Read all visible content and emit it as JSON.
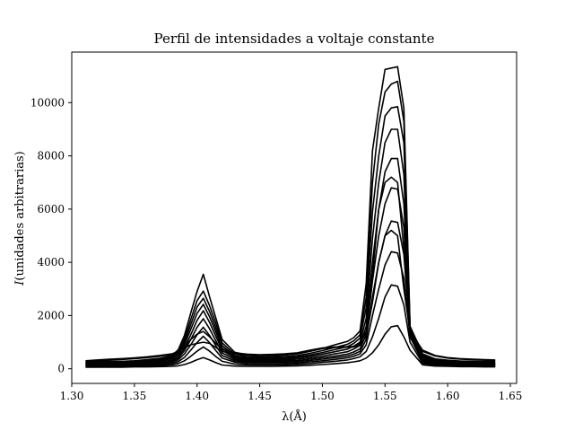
{
  "chart_data": {
    "type": "line",
    "title": "Perfil de intensidades a voltaje constante",
    "xlabel": "λ(Å)",
    "ylabel_symbol": "I",
    "ylabel_rest": "(unidades arbitrarias)",
    "xlim": [
      1.3,
      1.655
    ],
    "ylim": [
      -550,
      11900
    ],
    "xticks": [
      1.3,
      1.35,
      1.4,
      1.45,
      1.5,
      1.55,
      1.6,
      1.65
    ],
    "xtick_labels": [
      "1.30",
      "1.35",
      "1.40",
      "1.45",
      "1.50",
      "1.55",
      "1.60",
      "1.65"
    ],
    "yticks": [
      0,
      2000,
      4000,
      6000,
      8000,
      10000
    ],
    "ytick_labels": [
      "0",
      "2000",
      "4000",
      "6000",
      "8000",
      "10000"
    ],
    "grid": false,
    "line_color": "#000000",
    "x": [
      1.311,
      1.32,
      1.33,
      1.34,
      1.35,
      1.36,
      1.37,
      1.38,
      1.385,
      1.39,
      1.395,
      1.4,
      1.405,
      1.41,
      1.415,
      1.42,
      1.43,
      1.44,
      1.45,
      1.46,
      1.47,
      1.48,
      1.49,
      1.5,
      1.51,
      1.52,
      1.525,
      1.53,
      1.535,
      1.54,
      1.545,
      1.55,
      1.555,
      1.56,
      1.565,
      1.57,
      1.58,
      1.59,
      1.6,
      1.61,
      1.62,
      1.63,
      1.638
    ],
    "series": [
      {
        "values": [
          60,
          60,
          60,
          60,
          70,
          70,
          80,
          90,
          110,
          160,
          240,
          340,
          420,
          330,
          230,
          140,
          100,
          90,
          90,
          90,
          100,
          110,
          130,
          160,
          190,
          230,
          260,
          300,
          400,
          600,
          900,
          1300,
          1580,
          1620,
          1200,
          700,
          150,
          100,
          90,
          80,
          80,
          70,
          70
        ]
      },
      {
        "values": [
          80,
          80,
          90,
          90,
          100,
          110,
          120,
          150,
          200,
          300,
          470,
          660,
          820,
          660,
          460,
          280,
          180,
          150,
          140,
          140,
          150,
          170,
          200,
          240,
          280,
          330,
          380,
          450,
          650,
          1200,
          1900,
          2700,
          3150,
          3100,
          2400,
          1000,
          200,
          130,
          110,
          100,
          100,
          90,
          90
        ]
      },
      {
        "values": [
          100,
          100,
          110,
          120,
          130,
          140,
          160,
          200,
          270,
          430,
          700,
          990,
          1220,
          980,
          680,
          400,
          250,
          200,
          190,
          190,
          200,
          220,
          260,
          300,
          350,
          410,
          470,
          560,
          900,
          2000,
          3000,
          3900,
          4400,
          4350,
          3400,
          1200,
          250,
          160,
          130,
          120,
          120,
          110,
          110
        ]
      },
      {
        "values": [
          120,
          120,
          130,
          140,
          150,
          170,
          190,
          250,
          340,
          560,
          900,
          1280,
          1560,
          1250,
          870,
          500,
          300,
          250,
          240,
          240,
          250,
          270,
          310,
          360,
          420,
          480,
          550,
          650,
          1100,
          2700,
          4000,
          5000,
          5550,
          5500,
          4300,
          1300,
          300,
          190,
          160,
          140,
          140,
          130,
          130
        ]
      },
      {
        "values": [
          140,
          140,
          150,
          160,
          170,
          190,
          220,
          290,
          400,
          680,
          1100,
          1560,
          1880,
          1500,
          1050,
          600,
          350,
          290,
          280,
          280,
          290,
          310,
          360,
          420,
          480,
          550,
          630,
          750,
          1300,
          3300,
          5000,
          6200,
          6800,
          6750,
          5300,
          1350,
          350,
          220,
          180,
          160,
          160,
          150,
          150
        ]
      },
      {
        "values": [
          160,
          160,
          170,
          180,
          190,
          220,
          250,
          330,
          460,
          780,
          1280,
          1820,
          2180,
          1740,
          1220,
          700,
          400,
          330,
          320,
          320,
          330,
          360,
          410,
          480,
          560,
          640,
          740,
          880,
          1600,
          4000,
          6000,
          7400,
          7900,
          7900,
          6200,
          1400,
          400,
          250,
          210,
          190,
          180,
          170,
          170
        ]
      },
      {
        "values": [
          180,
          180,
          190,
          200,
          220,
          250,
          290,
          380,
          530,
          900,
          1480,
          2080,
          2420,
          1950,
          1380,
          780,
          440,
          370,
          360,
          360,
          370,
          410,
          470,
          550,
          640,
          740,
          850,
          1000,
          1900,
          4900,
          7000,
          8500,
          9000,
          9000,
          7300,
          1450,
          440,
          280,
          240,
          210,
          200,
          190,
          190
        ]
      },
      {
        "values": [
          200,
          200,
          210,
          220,
          240,
          280,
          320,
          420,
          590,
          1010,
          1660,
          2320,
          2650,
          2150,
          1530,
          870,
          490,
          410,
          400,
          400,
          410,
          450,
          520,
          610,
          720,
          830,
          950,
          1150,
          2300,
          5900,
          8000,
          9500,
          9800,
          9850,
          8500,
          1500,
          480,
          310,
          260,
          230,
          220,
          210,
          210
        ]
      },
      {
        "values": [
          220,
          220,
          230,
          240,
          260,
          300,
          350,
          460,
          650,
          1120,
          1850,
          2560,
          2920,
          2370,
          1700,
          970,
          550,
          460,
          450,
          450,
          460,
          500,
          580,
          680,
          800,
          920,
          1050,
          1280,
          2700,
          7000,
          9200,
          10400,
          10700,
          10800,
          9300,
          1550,
          520,
          340,
          290,
          260,
          250,
          240,
          240
        ]
      },
      {
        "values": [
          250,
          260,
          270,
          280,
          300,
          340,
          390,
          500,
          720,
          1260,
          2100,
          2900,
          3550,
          2700,
          1900,
          1100,
          620,
          520,
          510,
          510,
          520,
          560,
          650,
          760,
          900,
          1030,
          1170,
          1420,
          3200,
          8200,
          9800,
          11250,
          11300,
          11350,
          9800,
          1600,
          560,
          370,
          320,
          290,
          280,
          270,
          270
        ]
      },
      {
        "values": [
          270,
          290,
          320,
          350,
          380,
          420,
          470,
          540,
          650,
          800,
          900,
          950,
          1000,
          950,
          800,
          650,
          560,
          520,
          500,
          500,
          520,
          580,
          680,
          760,
          800,
          810,
          820,
          900,
          1200,
          2500,
          4000,
          5000,
          5200,
          5000,
          3000,
          1400,
          700,
          500,
          420,
          380,
          360,
          340,
          330
        ]
      },
      {
        "values": [
          300,
          330,
          360,
          380,
          410,
          450,
          500,
          560,
          660,
          820,
          1100,
          1300,
          1400,
          1200,
          950,
          750,
          600,
          550,
          530,
          540,
          560,
          600,
          700,
          780,
          820,
          830,
          840,
          950,
          1400,
          3500,
          6000,
          7000,
          7200,
          7000,
          4500,
          1500,
          650,
          480,
          400,
          360,
          340,
          320,
          310
        ]
      }
    ]
  }
}
